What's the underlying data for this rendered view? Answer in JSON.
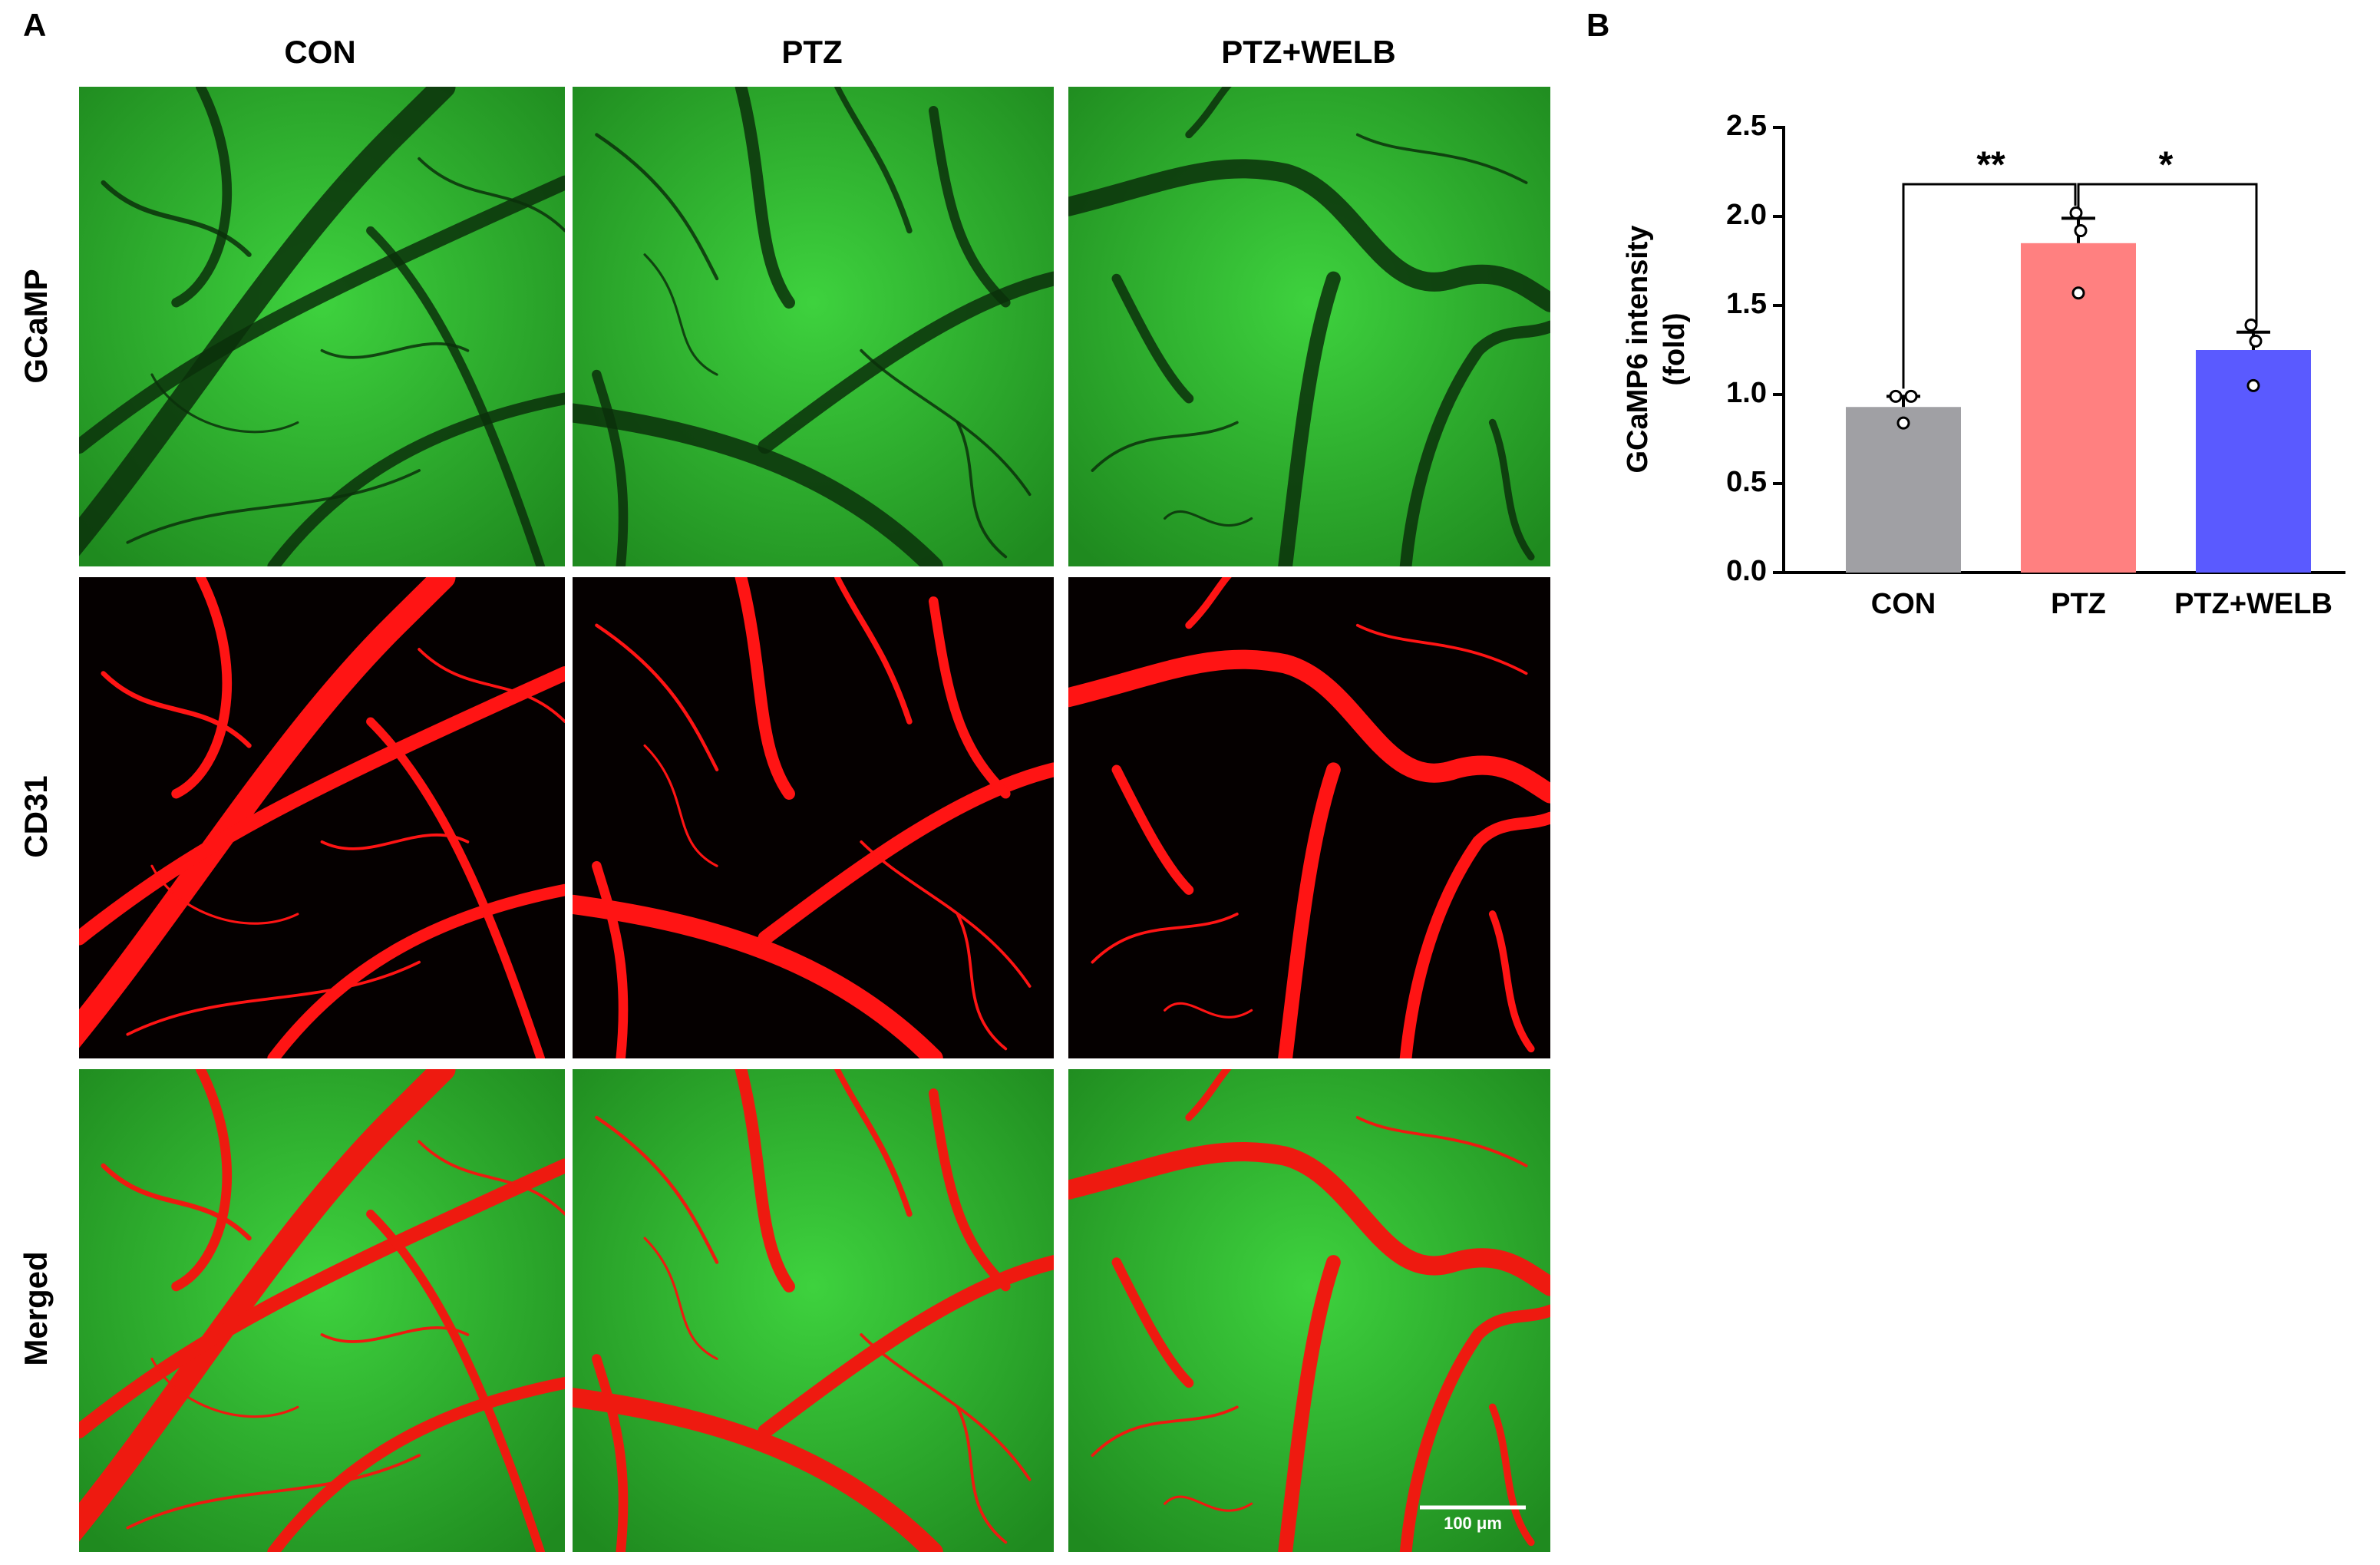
{
  "panel_labels": [
    "A",
    "B"
  ],
  "columns": [
    "CON",
    "PTZ",
    "PTZ+WELB"
  ],
  "rows": [
    "GCaMP",
    "CD31",
    "Merged"
  ],
  "scale_bar": "100 μm",
  "chart_data": {
    "type": "bar",
    "categories": [
      "CON",
      "PTZ",
      "PTZ+WELB"
    ],
    "values": [
      0.93,
      1.85,
      1.25
    ],
    "errors": [
      0.06,
      0.14,
      0.1
    ],
    "points": [
      [
        0.99,
        0.99,
        0.84
      ],
      [
        2.02,
        1.92,
        1.57
      ],
      [
        1.39,
        1.3,
        1.05
      ]
    ],
    "colors": [
      "#a0a0a4",
      "#ff8080",
      "#5a5aff"
    ],
    "ylabel": [
      "GCaMP6 intensity",
      "(fold)"
    ],
    "ylim": [
      0,
      2.5
    ],
    "yticks": [
      {
        "value": 0,
        "label": "0.0"
      },
      0.5,
      {
        "value": 1,
        "label": "1.0"
      },
      1.5,
      {
        "value": 2,
        "label": "2.0"
      },
      2.5
    ],
    "comparisons": [
      {
        "groups": [
          "CON",
          "PTZ"
        ],
        "label": "**"
      },
      {
        "groups": [
          "PTZ",
          "PTZ+WELB"
        ],
        "label": "*"
      }
    ]
  }
}
